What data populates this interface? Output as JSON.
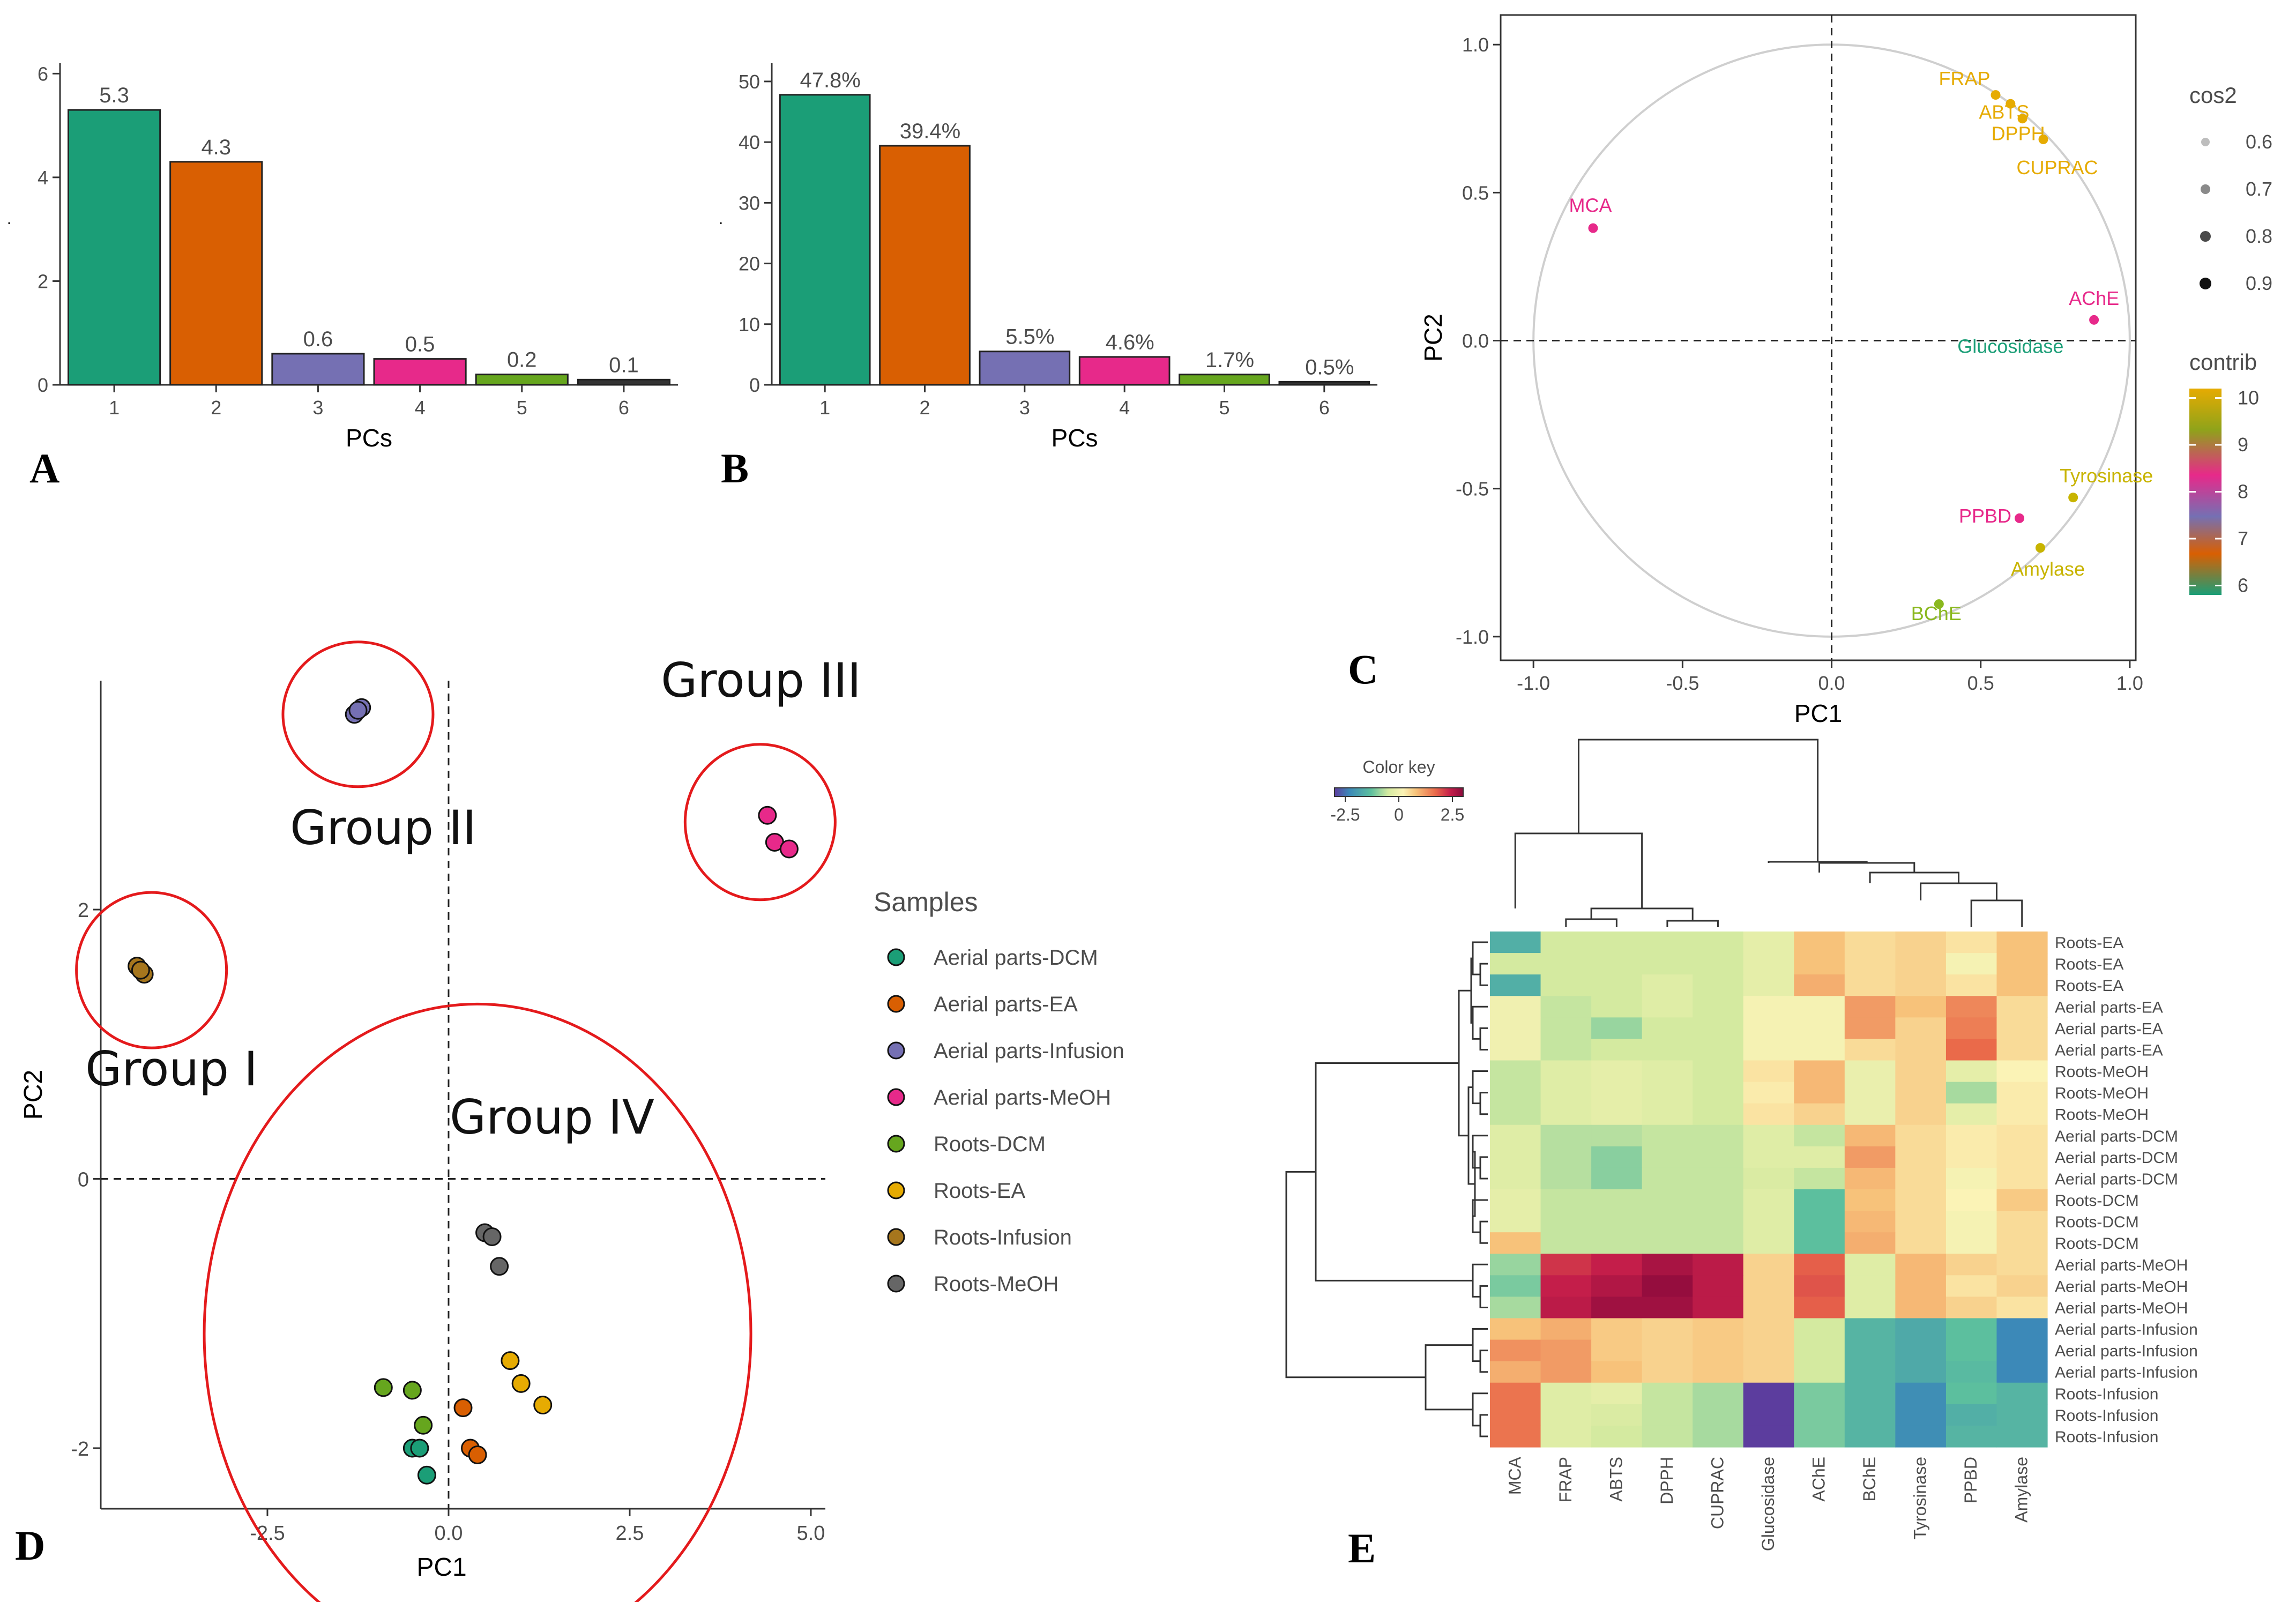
{
  "colors": {
    "teal": "#1b9e77",
    "orange": "#d95f02",
    "purple": "#7570b3",
    "pink": "#e7298a",
    "green": "#66a61e",
    "gold": "#e6ab02",
    "brown": "#a6761d",
    "gray": "#666666",
    "red_circle": "#e41a1c"
  },
  "panel_labels": {
    "a": "A",
    "b": "B",
    "c": "C",
    "d": "D",
    "e": "E"
  },
  "chart_data": [
    {
      "id": "A",
      "type": "bar",
      "title": "",
      "xlabel": "PCs",
      "ylabel": ".",
      "categories": [
        "1",
        "2",
        "3",
        "4",
        "5",
        "6"
      ],
      "values": [
        5.3,
        4.3,
        0.6,
        0.5,
        0.2,
        0.1
      ],
      "labels": [
        "5.3",
        "4.3",
        "0.6",
        "0.5",
        "0.2",
        "0.1"
      ],
      "yticks": [
        "0",
        "2",
        "4",
        "6"
      ],
      "ylim": [
        0,
        6.2
      ]
    },
    {
      "id": "B",
      "type": "bar",
      "title": "",
      "xlabel": "PCs",
      "ylabel": ".",
      "categories": [
        "1",
        "2",
        "3",
        "4",
        "5",
        "6"
      ],
      "values": [
        47.8,
        39.4,
        5.5,
        4.6,
        1.7,
        0.5
      ],
      "labels": [
        "47.8%",
        "39.4%",
        "5.5%",
        "4.6%",
        "1.7%",
        "0.5%"
      ],
      "yticks": [
        "0",
        "10",
        "20",
        "30",
        "40",
        "50"
      ],
      "ylim": [
        0,
        53
      ]
    },
    {
      "id": "C",
      "type": "scatter",
      "subtype": "correlation-circle",
      "xlabel": "PC1",
      "ylabel": "PC2",
      "xticks": [
        "-1.0",
        "-0.5",
        "0.0",
        "0.5",
        "1.0"
      ],
      "yticks": [
        "-1.0",
        "-0.5",
        "0.0",
        "0.5",
        "1.0"
      ],
      "xlim": [
        -1.11,
        1.02
      ],
      "ylim": [
        -1.08,
        1.1
      ],
      "points": [
        {
          "label": "FRAP",
          "x": 0.55,
          "y": 0.83,
          "color": "#e6ab02"
        },
        {
          "label": "ABTS",
          "x": 0.6,
          "y": 0.8,
          "color": "#e6ab02"
        },
        {
          "label": "DPPH",
          "x": 0.64,
          "y": 0.75,
          "color": "#e6ab02"
        },
        {
          "label": "CUPRAC",
          "x": 0.71,
          "y": 0.68,
          "color": "#e6ab02"
        },
        {
          "label": "MCA",
          "x": -0.8,
          "y": 0.38,
          "color": "#e7298a"
        },
        {
          "label": "AChE",
          "x": 0.88,
          "y": 0.07,
          "color": "#e7298a"
        },
        {
          "label": "Glucosidase",
          "x": 0.6,
          "y": -0.02,
          "color": "#1b9e77"
        },
        {
          "label": "Tyrosinase",
          "x": 0.81,
          "y": -0.53,
          "color": "#c8b400"
        },
        {
          "label": "PPBD",
          "x": 0.63,
          "y": -0.6,
          "color": "#e7298a"
        },
        {
          "label": "Amylase",
          "x": 0.7,
          "y": -0.7,
          "color": "#c8b400"
        },
        {
          "label": "BChE",
          "x": 0.36,
          "y": -0.89,
          "color": "#8ab81e"
        }
      ],
      "legend_cos2": {
        "title": "cos2",
        "values": [
          "0.6",
          "0.7",
          "0.8",
          "0.9"
        ]
      },
      "legend_contrib": {
        "title": "contrib",
        "ticks": [
          "6",
          "7",
          "8",
          "9",
          "10"
        ]
      }
    },
    {
      "id": "D",
      "type": "scatter",
      "subtype": "pca-scores",
      "xlabel": "PC1",
      "ylabel": "PC2",
      "xticks": [
        "-2.5",
        "0.0",
        "2.5",
        "5.0"
      ],
      "yticks": [
        "-2",
        "0",
        "2"
      ],
      "xlim": [
        -4.8,
        5.2
      ],
      "ylim": [
        -2.45,
        3.7
      ],
      "series": [
        {
          "name": "Aerial parts-DCM",
          "color": "#1b9e77",
          "points": [
            [
              -0.5,
              -2.0
            ],
            [
              -0.4,
              -2.0
            ],
            [
              -0.3,
              -2.2
            ]
          ]
        },
        {
          "name": "Aerial parts-EA",
          "color": "#d95f02",
          "points": [
            [
              0.2,
              -1.7
            ],
            [
              0.3,
              -2.0
            ],
            [
              0.4,
              -2.05
            ]
          ]
        },
        {
          "name": "Aerial parts-Infusion",
          "color": "#7570b3",
          "points": [
            [
              -1.3,
              3.45
            ],
            [
              -1.2,
              3.5
            ],
            [
              -1.25,
              3.48
            ]
          ]
        },
        {
          "name": "Aerial parts-MeOH",
          "color": "#e7298a",
          "points": [
            [
              4.4,
              2.7
            ],
            [
              4.5,
              2.5
            ],
            [
              4.7,
              2.45
            ]
          ]
        },
        {
          "name": "Roots-DCM",
          "color": "#66a61e",
          "points": [
            [
              -0.9,
              -1.55
            ],
            [
              -0.5,
              -1.57
            ],
            [
              -0.35,
              -1.83
            ]
          ]
        },
        {
          "name": "Roots-EA",
          "color": "#e6ab02",
          "points": [
            [
              0.85,
              -1.35
            ],
            [
              1.0,
              -1.52
            ],
            [
              1.3,
              -1.68
            ]
          ]
        },
        {
          "name": "Roots-Infusion",
          "color": "#a6761d",
          "points": [
            [
              -4.3,
              1.58
            ],
            [
              -4.2,
              1.52
            ],
            [
              -4.25,
              1.55
            ]
          ]
        },
        {
          "name": "Roots-MeOH",
          "color": "#666666",
          "points": [
            [
              0.5,
              -0.4
            ],
            [
              0.6,
              -0.43
            ],
            [
              0.7,
              -0.65
            ]
          ]
        }
      ],
      "legend_title": "Samples",
      "groups": [
        {
          "label": "Group I",
          "cx": -4.1,
          "cy": 1.55
        },
        {
          "label": "Group II",
          "cx": -1.25,
          "cy": 3.45
        },
        {
          "label": "Group III",
          "cx": 4.3,
          "cy": 2.65
        },
        {
          "label": "Group IV",
          "cx": 0.4,
          "cy": -1.15
        }
      ]
    },
    {
      "id": "E",
      "type": "heatmap",
      "color_key": {
        "title": "Color key",
        "ticks": [
          "-2.5",
          "0",
          "2.5"
        ],
        "range": [
          -3,
          3
        ]
      },
      "columns": [
        "MCA",
        "FRAP",
        "ABTS",
        "DPPH",
        "CUPRAC",
        "Glucosidase",
        "AChE",
        "BChE",
        "Tyrosinase",
        "PPBD",
        "Amylase"
      ],
      "rows": [
        "Roots-EA",
        "Roots-EA",
        "Roots-EA",
        "Aerial parts-EA",
        "Aerial parts-EA",
        "Aerial parts-EA",
        "Roots-MeOH",
        "Roots-MeOH",
        "Roots-MeOH",
        "Aerial parts-DCM",
        "Aerial parts-DCM",
        "Aerial parts-DCM",
        "Roots-DCM",
        "Roots-DCM",
        "Roots-DCM",
        "Aerial parts-MeOH",
        "Aerial parts-MeOH",
        "Aerial parts-MeOH",
        "Aerial parts-Infusion",
        "Aerial parts-Infusion",
        "Aerial parts-Infusion",
        "Roots-Infusion",
        "Roots-Infusion",
        "Roots-Infusion"
      ],
      "values": [
        [
          -1.6,
          -0.5,
          -0.5,
          -0.5,
          -0.5,
          -0.2,
          0.8,
          0.5,
          0.6,
          0.4,
          0.8
        ],
        [
          -0.5,
          -0.5,
          -0.5,
          -0.5,
          -0.5,
          -0.2,
          0.8,
          0.5,
          0.6,
          0.1,
          0.8
        ],
        [
          -1.6,
          -0.5,
          -0.5,
          -0.3,
          -0.5,
          -0.2,
          1.0,
          0.5,
          0.6,
          0.4,
          0.8
        ],
        [
          0.0,
          -0.6,
          -0.5,
          -0.3,
          -0.5,
          0.1,
          0.1,
          1.2,
          0.8,
          1.4,
          0.5
        ],
        [
          0.0,
          -0.6,
          -0.9,
          -0.5,
          -0.5,
          0.1,
          0.1,
          1.2,
          0.6,
          1.5,
          0.5
        ],
        [
          0.0,
          -0.6,
          -0.5,
          -0.5,
          -0.5,
          0.1,
          0.1,
          0.5,
          0.6,
          1.7,
          0.5
        ],
        [
          -0.6,
          -0.3,
          -0.2,
          -0.3,
          -0.5,
          0.4,
          0.9,
          -0.1,
          0.6,
          -0.2,
          0.2
        ],
        [
          -0.6,
          -0.3,
          -0.2,
          -0.3,
          -0.5,
          0.3,
          0.9,
          -0.1,
          0.6,
          -0.8,
          0.3
        ],
        [
          -0.6,
          -0.3,
          -0.2,
          -0.3,
          -0.5,
          0.4,
          0.6,
          -0.1,
          0.6,
          -0.2,
          0.3
        ],
        [
          -0.3,
          -0.7,
          -0.7,
          -0.6,
          -0.6,
          -0.3,
          -0.6,
          0.9,
          0.5,
          0.3,
          0.4
        ],
        [
          -0.3,
          -0.7,
          -1.0,
          -0.6,
          -0.6,
          -0.3,
          -0.3,
          1.2,
          0.5,
          0.3,
          0.4
        ],
        [
          -0.3,
          -0.7,
          -1.0,
          -0.6,
          -0.6,
          -0.4,
          -0.6,
          0.9,
          0.5,
          0.1,
          0.4
        ],
        [
          -0.2,
          -0.6,
          -0.6,
          -0.6,
          -0.6,
          -0.3,
          -1.3,
          0.8,
          0.5,
          0.2,
          0.7
        ],
        [
          -0.2,
          -0.6,
          -0.6,
          -0.6,
          -0.6,
          -0.3,
          -1.3,
          0.9,
          0.5,
          0.1,
          0.5
        ],
        [
          0.8,
          -0.6,
          -0.6,
          -0.6,
          -0.6,
          -0.3,
          -1.3,
          1.0,
          0.5,
          0.1,
          0.5
        ],
        [
          -0.9,
          2.2,
          2.4,
          2.7,
          2.5,
          0.6,
          1.8,
          -0.3,
          0.9,
          0.6,
          0.5
        ],
        [
          -1.1,
          2.4,
          2.6,
          2.9,
          2.5,
          0.6,
          1.9,
          -0.3,
          0.9,
          0.4,
          0.6
        ],
        [
          -0.8,
          2.5,
          2.8,
          2.8,
          2.5,
          0.6,
          1.8,
          -0.3,
          0.9,
          0.6,
          0.4
        ],
        [
          0.8,
          1.0,
          0.7,
          0.6,
          0.7,
          0.6,
          -0.5,
          -1.5,
          -1.7,
          -1.3,
          -2.3
        ],
        [
          1.3,
          1.2,
          0.7,
          0.6,
          0.7,
          0.6,
          -0.5,
          -1.5,
          -1.7,
          -1.3,
          -2.3
        ],
        [
          1.0,
          1.2,
          0.8,
          0.6,
          0.7,
          0.6,
          -0.5,
          -1.5,
          -1.7,
          -1.4,
          -2.3
        ],
        [
          1.6,
          -0.3,
          -0.2,
          -0.6,
          -0.8,
          -3.0,
          -1.1,
          -1.5,
          -2.2,
          -1.3,
          -1.5
        ],
        [
          1.6,
          -0.3,
          -0.4,
          -0.6,
          -0.8,
          -3.0,
          -1.1,
          -1.5,
          -2.2,
          -1.6,
          -1.5
        ],
        [
          1.6,
          -0.3,
          -0.5,
          -0.6,
          -0.8,
          -3.0,
          -1.1,
          -1.5,
          -2.2,
          -1.5,
          -1.5
        ]
      ]
    }
  ]
}
